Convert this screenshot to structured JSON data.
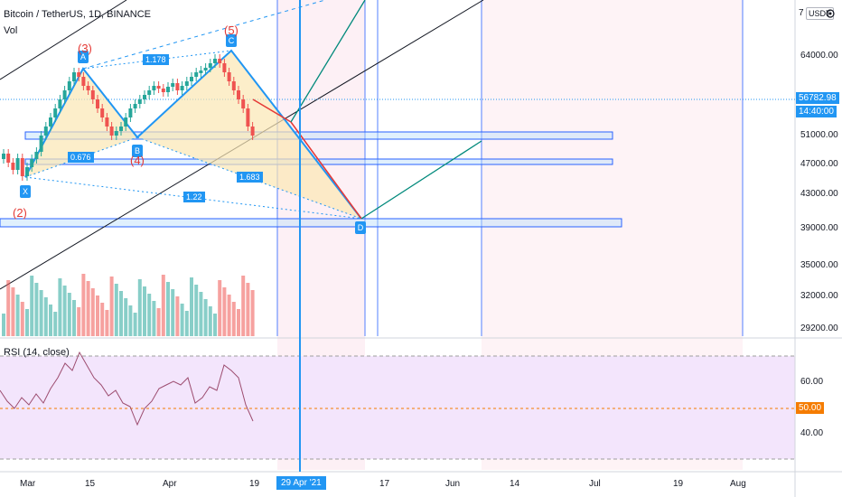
{
  "header": {
    "symbol_line": "Bitcoin / TetherUS, 1D, BINANCE",
    "volume_label": "Vol",
    "currency_badge": "USDT",
    "currency_badge_prefix": "7",
    "settings_icon": "gear-icon"
  },
  "price_axis": {
    "labels": [
      "64000.00",
      "51000.00",
      "47000.00",
      "43000.00",
      "39000.00",
      "35000.00",
      "32000.00",
      "29200.00"
    ],
    "last_price": "56782.98",
    "countdown": "14:40:00",
    "last_price_color": "#2196f3"
  },
  "rsi_pane": {
    "title": "RSI (14, close)",
    "axis_labels": [
      "60.00",
      "40.00"
    ],
    "midline_value": "50.00",
    "midline_color": "#f57c00"
  },
  "time_axis": {
    "labels": [
      "Mar",
      "15",
      "Apr",
      "19",
      "17",
      "Jun",
      "14",
      "Jul",
      "19",
      "Aug"
    ],
    "crosshair_label": "29 Apr '21"
  },
  "pattern": {
    "points": [
      "X",
      "A",
      "B",
      "C",
      "D"
    ],
    "ratios": [
      "1.178",
      "0.676",
      "1.683",
      "1.22"
    ],
    "wave_labels": [
      "(2)",
      "(3)",
      "(4)",
      "(5)"
    ]
  },
  "colors": {
    "bull": "#26a69a",
    "bear": "#ef5350",
    "pattern_blue": "#2196f3",
    "pattern_fill": "#fbe7b4",
    "rsi_bg": "#f3e5fc",
    "rsi_line": "#9c4c6f"
  }
}
